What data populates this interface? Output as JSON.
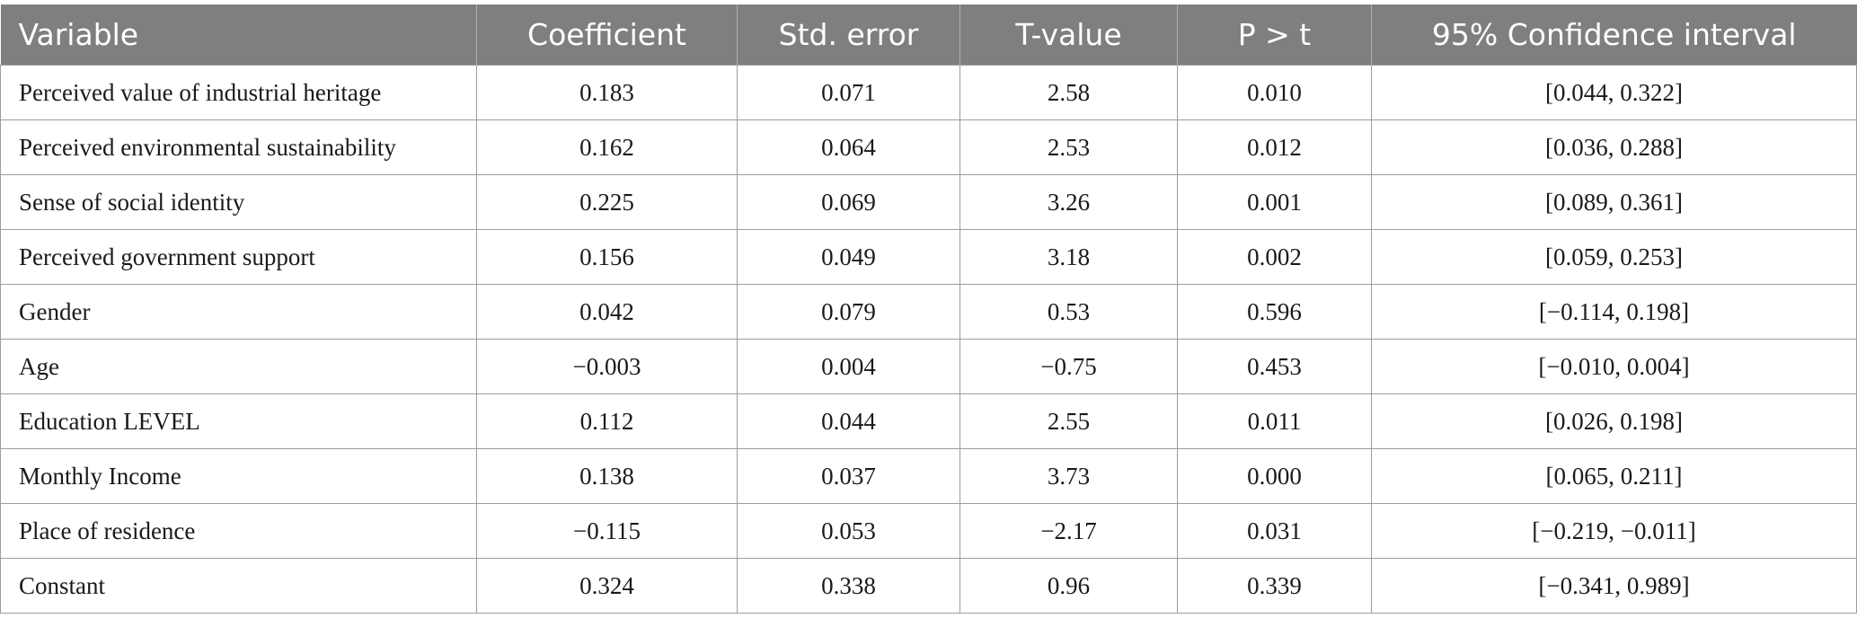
{
  "table": {
    "headers": [
      "Variable",
      "Coefficient",
      "Std. error",
      "T-value",
      "P > t",
      "95% Confidence interval"
    ],
    "rows": [
      [
        "Perceived value of industrial heritage",
        "0.183",
        "0.071",
        "2.58",
        "0.010",
        "[0.044, 0.322]"
      ],
      [
        "Perceived environmental sustainability",
        "0.162",
        "0.064",
        "2.53",
        "0.012",
        "[0.036, 0.288]"
      ],
      [
        "Sense of social identity",
        "0.225",
        "0.069",
        "3.26",
        "0.001",
        "[0.089, 0.361]"
      ],
      [
        "Perceived government support",
        "0.156",
        "0.049",
        "3.18",
        "0.002",
        "[0.059, 0.253]"
      ],
      [
        "Gender",
        "0.042",
        "0.079",
        "0.53",
        "0.596",
        "[−0.114, 0.198]"
      ],
      [
        "Age",
        "−0.003",
        "0.004",
        "−0.75",
        "0.453",
        "[−0.010, 0.004]"
      ],
      [
        "Education LEVEL",
        "0.112",
        "0.044",
        "2.55",
        "0.011",
        "[0.026, 0.198]"
      ],
      [
        "Monthly Income",
        "0.138",
        "0.037",
        "3.73",
        "0.000",
        "[0.065, 0.211]"
      ],
      [
        "Place of residence",
        "−0.115",
        "0.053",
        "−2.17",
        "0.031",
        "[−0.219, −0.011]"
      ],
      [
        "Constant",
        "0.324",
        "0.338",
        "0.96",
        "0.339",
        "[−0.341, 0.989]"
      ]
    ]
  },
  "colors": {
    "header_bg": "#7f7f7f",
    "header_text": "#ffffff",
    "grid": "#9d9d9d"
  }
}
